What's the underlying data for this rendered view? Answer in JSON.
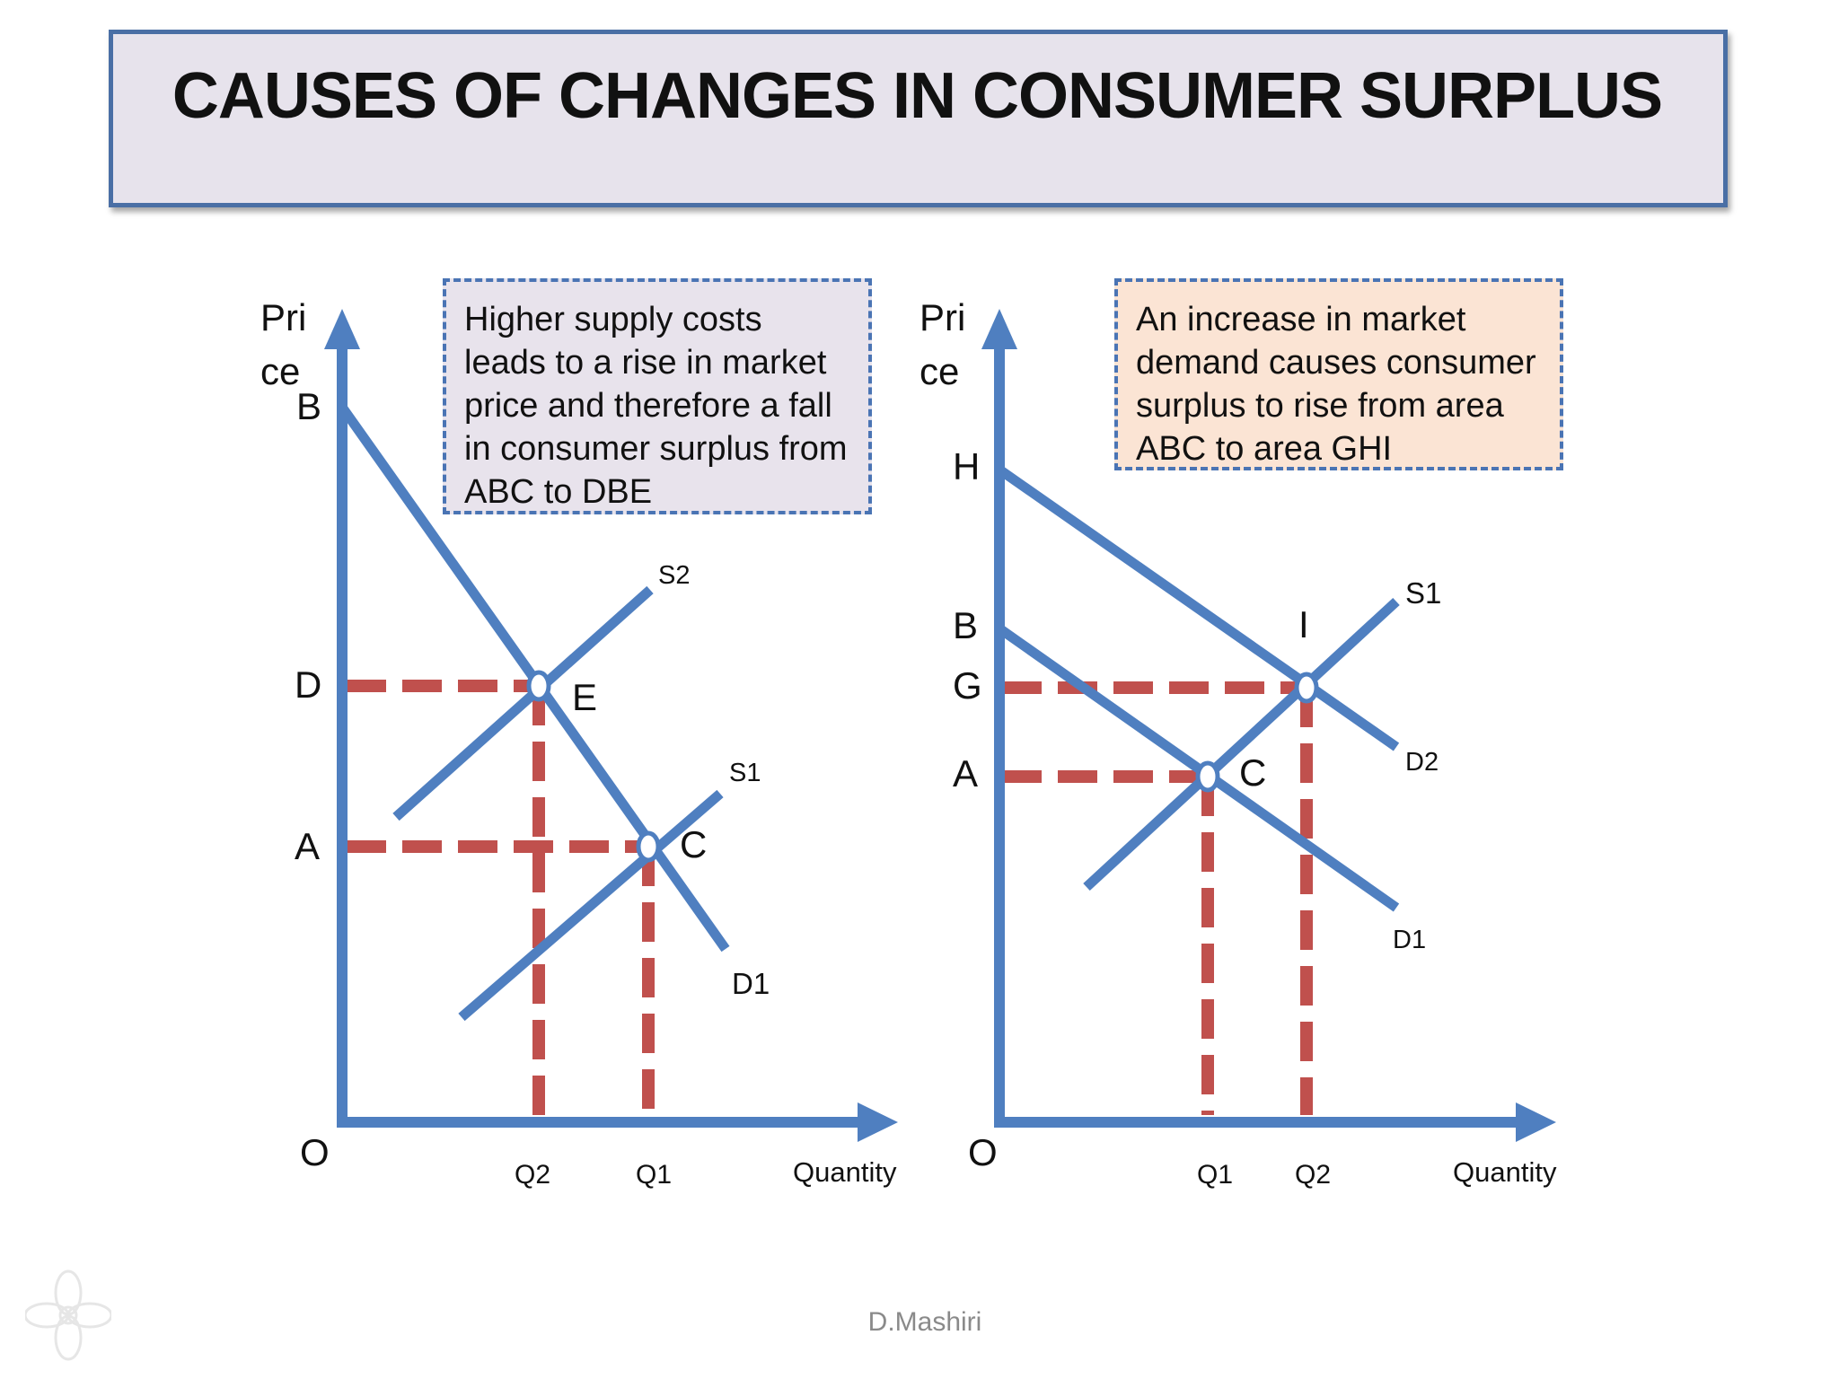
{
  "slide": {
    "title": "CAUSES OF CHANGES IN CONSUMER SURPLUS",
    "footer": "D.Mashiri"
  },
  "left_diagram": {
    "note": "Higher supply costs leads to a rise in market price and therefore a fall in consumer surplus from ABC to DBE",
    "y_axis_label_line1": "Pri",
    "y_axis_label_line2": "ce",
    "x_axis_label": "Quantity",
    "origin_label": "O",
    "price_labels": {
      "b": "B",
      "d": "D",
      "a": "A"
    },
    "quantity_labels": {
      "q2": "Q2",
      "q1": "Q1"
    },
    "point_labels": {
      "e": "E",
      "c": "C"
    },
    "curve_labels": {
      "s2": "S2",
      "s1": "S1",
      "d1": "D1"
    }
  },
  "right_diagram": {
    "note": "An increase in market demand causes consumer surplus to rise from area ABC to area GHI",
    "y_axis_label_line1": "Pri",
    "y_axis_label_line2": "ce",
    "x_axis_label": "Quantity",
    "origin_label": "O",
    "price_labels": {
      "h": "H",
      "b": "B",
      "g": "G",
      "a": "A"
    },
    "quantity_labels": {
      "q1": "Q1",
      "q2": "Q2"
    },
    "point_labels": {
      "i": "I",
      "c": "C"
    },
    "curve_labels": {
      "s1": "S1",
      "d2": "D2",
      "d1": "D1"
    }
  },
  "colors": {
    "axis_and_curves": "#4f7fc0",
    "dashed_guides": "#c0504d",
    "title_background": "#e7e3ec",
    "title_border": "#4a6fa5",
    "left_note_background": "#e8e3ec",
    "right_note_background": "#fbe4d4"
  }
}
